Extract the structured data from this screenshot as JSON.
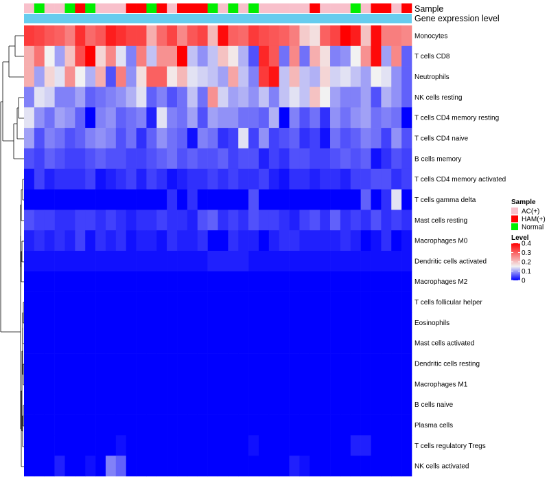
{
  "chart_data": {
    "type": "heatmap",
    "title": "",
    "annotation_labels": {
      "sample": "Sample",
      "expression": "Gene expression level"
    },
    "sample_annotation": [
      "AC(+)",
      "Normal",
      "AC(+)",
      "AC(+)",
      "Normal",
      "HAM(+)",
      "Normal",
      "AC(+)",
      "AC(+)",
      "AC(+)",
      "HAM(+)",
      "HAM(+)",
      "Normal",
      "HAM(+)",
      "AC(+)",
      "HAM(+)",
      "HAM(+)",
      "HAM(+)",
      "Normal",
      "AC(+)",
      "Normal",
      "AC(+)",
      "Normal",
      "AC(+)",
      "AC(+)",
      "AC(+)",
      "AC(+)",
      "AC(+)",
      "HAM(+)",
      "AC(+)",
      "AC(+)",
      "AC(+)",
      "Normal",
      "AC(+)",
      "HAM(+)",
      "HAM(+)",
      "AC(+)",
      "HAM(+)"
    ],
    "sample_colors": {
      "AC(+)": "#f8c0cb",
      "HAM(+)": "#ff0000",
      "Normal": "#00ee00"
    },
    "expression_color": "#66ccee",
    "rows": [
      "Monocytes",
      "T cells CD8",
      "Neutrophils",
      "NK cells resting",
      "T cells CD4 memory resting",
      "T cells CD4 naive",
      "B cells memory",
      "T cells CD4 memory activated",
      "T cells gamma delta",
      "Mast cells resting",
      "Macrophages M0",
      "Dendritic cells activated",
      "Macrophages M2",
      "T cells follicular helper",
      "Eosinophils",
      "Mast cells activated",
      "Dendritic cells resting",
      "Macrophages M1",
      "B cells naive",
      "Plasma cells",
      "T cells regulatory  Tregs",
      "NK cells activated"
    ],
    "values": [
      [
        0.34,
        0.33,
        0.31,
        0.3,
        0.27,
        0.35,
        0.29,
        0.31,
        0.37,
        0.35,
        0.33,
        0.33,
        0.22,
        0.29,
        0.33,
        0.26,
        0.31,
        0.33,
        0.21,
        0.39,
        0.3,
        0.29,
        0.34,
        0.32,
        0.31,
        0.3,
        0.27,
        0.19,
        0.17,
        0.3,
        0.33,
        0.4,
        0.37,
        0.2,
        0.39,
        0.27,
        0.27,
        0.26
      ],
      [
        0.22,
        0.28,
        0.15,
        0.1,
        0.2,
        0.32,
        0.4,
        0.18,
        0.26,
        0.14,
        0.08,
        0.27,
        0.12,
        0.25,
        0.25,
        0.4,
        0.12,
        0.09,
        0.12,
        0.2,
        0.16,
        0.11,
        0.05,
        0.36,
        0.31,
        0.07,
        0.26,
        0.07,
        0.22,
        0.17,
        0.08,
        0.09,
        0.15,
        0.25,
        0.39,
        0.1,
        0.26,
        0.06
      ],
      [
        0.22,
        0.1,
        0.18,
        0.14,
        0.25,
        0.15,
        0.11,
        0.22,
        0.05,
        0.27,
        0.09,
        0.17,
        0.3,
        0.3,
        0.16,
        0.21,
        0.14,
        0.13,
        0.12,
        0.1,
        0.23,
        0.12,
        0.08,
        0.34,
        0.38,
        0.12,
        0.21,
        0.12,
        0.11,
        0.18,
        0.13,
        0.14,
        0.12,
        0.1,
        0.15,
        0.14,
        0.09,
        0.06
      ],
      [
        0.08,
        0.14,
        0.13,
        0.08,
        0.08,
        0.1,
        0.06,
        0.07,
        0.08,
        0.09,
        0.11,
        0.14,
        0.06,
        0.08,
        0.05,
        0.07,
        0.12,
        0.07,
        0.25,
        0.13,
        0.1,
        0.11,
        0.09,
        0.12,
        0.08,
        0.12,
        0.14,
        0.12,
        0.2,
        0.15,
        0.1,
        0.08,
        0.08,
        0.1,
        0.05,
        0.11,
        0.09,
        0.06
      ],
      [
        0.14,
        0.09,
        0.07,
        0.1,
        0.09,
        0.06,
        0.0,
        0.08,
        0.09,
        0.06,
        0.07,
        0.08,
        0.02,
        0.14,
        0.08,
        0.07,
        0.1,
        0.05,
        0.1,
        0.09,
        0.09,
        0.07,
        0.07,
        0.06,
        0.11,
        0.0,
        0.08,
        0.05,
        0.07,
        0.03,
        0.09,
        0.07,
        0.09,
        0.1,
        0.07,
        0.08,
        0.07,
        0.0
      ],
      [
        0.1,
        0.05,
        0.08,
        0.07,
        0.05,
        0.06,
        0.08,
        0.09,
        0.08,
        0.05,
        0.07,
        0.03,
        0.06,
        0.09,
        0.07,
        0.06,
        0.01,
        0.08,
        0.07,
        0.03,
        0.04,
        0.14,
        0.04,
        0.09,
        0.04,
        0.05,
        0.06,
        0.03,
        0.04,
        0.01,
        0.07,
        0.05,
        0.06,
        0.08,
        0.07,
        0.04,
        0.09,
        0.05
      ],
      [
        0.05,
        0.04,
        0.06,
        0.05,
        0.04,
        0.04,
        0.05,
        0.06,
        0.05,
        0.05,
        0.04,
        0.04,
        0.05,
        0.06,
        0.07,
        0.05,
        0.06,
        0.05,
        0.05,
        0.06,
        0.04,
        0.05,
        0.05,
        0.02,
        0.04,
        0.03,
        0.05,
        0.05,
        0.04,
        0.04,
        0.05,
        0.06,
        0.05,
        0.06,
        0.01,
        0.03,
        0.05,
        0.04
      ],
      [
        0.01,
        0.04,
        0.02,
        0.03,
        0.03,
        0.03,
        0.04,
        0.01,
        0.02,
        0.03,
        0.04,
        0.02,
        0.04,
        0.03,
        0.01,
        0.02,
        0.03,
        0.03,
        0.04,
        0.03,
        0.04,
        0.03,
        0.03,
        0.04,
        0.02,
        0.01,
        0.03,
        0.03,
        0.02,
        0.03,
        0.03,
        0.02,
        0.04,
        0.04,
        0.05,
        0.05,
        0.03,
        0.04
      ],
      [
        0.0,
        0.0,
        0.0,
        0.0,
        0.0,
        0.0,
        0.0,
        0.0,
        0.0,
        0.0,
        0.0,
        0.0,
        0.0,
        0.0,
        0.03,
        0.0,
        0.03,
        0.0,
        0.0,
        0.0,
        0.0,
        0.0,
        0.05,
        0.0,
        0.0,
        0.0,
        0.0,
        0.0,
        0.0,
        0.0,
        0.0,
        0.0,
        0.0,
        0.06,
        0.0,
        0.03,
        0.14,
        0.0
      ],
      [
        0.05,
        0.04,
        0.04,
        0.03,
        0.03,
        0.04,
        0.04,
        0.03,
        0.04,
        0.03,
        0.02,
        0.03,
        0.03,
        0.04,
        0.03,
        0.03,
        0.02,
        0.05,
        0.06,
        0.03,
        0.04,
        0.03,
        0.05,
        0.04,
        0.04,
        0.03,
        0.02,
        0.04,
        0.05,
        0.03,
        0.06,
        0.03,
        0.04,
        0.03,
        0.05,
        0.03,
        0.04,
        0.03
      ],
      [
        0.02,
        0.03,
        0.02,
        0.03,
        0.02,
        0.04,
        0.01,
        0.03,
        0.02,
        0.03,
        0.01,
        0.02,
        0.02,
        0.01,
        0.03,
        0.02,
        0.02,
        0.03,
        0.0,
        0.0,
        0.03,
        0.02,
        0.02,
        0.0,
        0.02,
        0.03,
        0.03,
        0.02,
        0.02,
        0.02,
        0.02,
        0.03,
        0.02,
        0.0,
        0.01,
        0.03,
        0.0,
        0.01
      ],
      [
        0.01,
        0.01,
        0.01,
        0.01,
        0.01,
        0.01,
        0.01,
        0.01,
        0.01,
        0.01,
        0.01,
        0.01,
        0.01,
        0.01,
        0.01,
        0.01,
        0.01,
        0.01,
        0.02,
        0.02,
        0.02,
        0.02,
        0.01,
        0.01,
        0.01,
        0.01,
        0.01,
        0.01,
        0.01,
        0.01,
        0.01,
        0.01,
        0.01,
        0.01,
        0.01,
        0.01,
        0.01,
        0.01
      ],
      [
        0.0,
        0.0,
        0.0,
        0.0,
        0.0,
        0.0,
        0.0,
        0.0,
        0.0,
        0.0,
        0.0,
        0.0,
        0.0,
        0.0,
        0.0,
        0.0,
        0.0,
        0.0,
        0.0,
        0.0,
        0.0,
        0.0,
        0.0,
        0.0,
        0.0,
        0.0,
        0.0,
        0.0,
        0.0,
        0.0,
        0.0,
        0.0,
        0.0,
        0.0,
        0.0,
        0.0,
        0.0,
        0.0
      ],
      [
        0.0,
        0.0,
        0.0,
        0.0,
        0.0,
        0.0,
        0.0,
        0.0,
        0.0,
        0.0,
        0.0,
        0.0,
        0.0,
        0.0,
        0.0,
        0.0,
        0.0,
        0.0,
        0.0,
        0.0,
        0.0,
        0.0,
        0.0,
        0.0,
        0.0,
        0.0,
        0.0,
        0.0,
        0.0,
        0.0,
        0.0,
        0.0,
        0.0,
        0.0,
        0.0,
        0.0,
        0.0,
        0.0
      ],
      [
        0.0,
        0.0,
        0.0,
        0.0,
        0.0,
        0.0,
        0.0,
        0.0,
        0.0,
        0.0,
        0.0,
        0.0,
        0.0,
        0.0,
        0.0,
        0.0,
        0.0,
        0.0,
        0.0,
        0.0,
        0.0,
        0.0,
        0.0,
        0.0,
        0.0,
        0.0,
        0.0,
        0.0,
        0.0,
        0.0,
        0.0,
        0.0,
        0.0,
        0.0,
        0.0,
        0.0,
        0.0,
        0.0
      ],
      [
        0.0,
        0.0,
        0.0,
        0.0,
        0.0,
        0.0,
        0.0,
        0.0,
        0.0,
        0.0,
        0.0,
        0.0,
        0.0,
        0.0,
        0.0,
        0.0,
        0.0,
        0.0,
        0.0,
        0.0,
        0.0,
        0.0,
        0.0,
        0.0,
        0.0,
        0.0,
        0.0,
        0.0,
        0.0,
        0.0,
        0.0,
        0.0,
        0.0,
        0.0,
        0.0,
        0.0,
        0.0,
        0.0
      ],
      [
        0.0,
        0.0,
        0.0,
        0.0,
        0.0,
        0.0,
        0.0,
        0.0,
        0.0,
        0.0,
        0.0,
        0.0,
        0.0,
        0.0,
        0.0,
        0.0,
        0.0,
        0.0,
        0.0,
        0.0,
        0.0,
        0.0,
        0.0,
        0.0,
        0.0,
        0.0,
        0.0,
        0.0,
        0.0,
        0.0,
        0.0,
        0.0,
        0.0,
        0.0,
        0.0,
        0.0,
        0.0,
        0.0
      ],
      [
        0.0,
        0.0,
        0.0,
        0.0,
        0.0,
        0.0,
        0.0,
        0.0,
        0.0,
        0.0,
        0.0,
        0.0,
        0.0,
        0.0,
        0.0,
        0.0,
        0.0,
        0.0,
        0.0,
        0.0,
        0.0,
        0.0,
        0.0,
        0.0,
        0.0,
        0.0,
        0.0,
        0.0,
        0.0,
        0.0,
        0.0,
        0.0,
        0.0,
        0.0,
        0.0,
        0.0,
        0.0,
        0.0
      ],
      [
        0.0,
        0.0,
        0.0,
        0.0,
        0.0,
        0.0,
        0.0,
        0.0,
        0.0,
        0.0,
        0.0,
        0.0,
        0.0,
        0.0,
        0.0,
        0.0,
        0.0,
        0.0,
        0.0,
        0.0,
        0.0,
        0.0,
        0.0,
        0.0,
        0.0,
        0.0,
        0.0,
        0.0,
        0.0,
        0.0,
        0.0,
        0.0,
        0.0,
        0.0,
        0.0,
        0.0,
        0.0,
        0.0
      ],
      [
        0.0,
        0.0,
        0.0,
        0.0,
        0.0,
        0.0,
        0.0,
        0.0,
        0.0,
        0.0,
        0.0,
        0.0,
        0.0,
        0.0,
        0.0,
        0.0,
        0.0,
        0.0,
        0.0,
        0.0,
        0.0,
        0.0,
        0.0,
        0.0,
        0.0,
        0.0,
        0.0,
        0.0,
        0.0,
        0.0,
        0.0,
        0.0,
        0.0,
        0.0,
        0.0,
        0.0,
        0.0,
        0.0
      ],
      [
        0.0,
        0.0,
        0.0,
        0.0,
        0.0,
        0.0,
        0.0,
        0.0,
        0.0,
        0.01,
        0.0,
        0.0,
        0.0,
        0.0,
        0.0,
        0.0,
        0.0,
        0.0,
        0.0,
        0.0,
        0.0,
        0.0,
        0.01,
        0.0,
        0.0,
        0.0,
        0.0,
        0.0,
        0.0,
        0.0,
        0.0,
        0.0,
        0.02,
        0.02,
        0.0,
        0.0,
        0.0,
        0.0
      ],
      [
        0.0,
        0.0,
        0.0,
        0.02,
        0.0,
        0.0,
        0.01,
        0.0,
        0.08,
        0.06,
        0.0,
        0.0,
        0.0,
        0.0,
        0.0,
        0.0,
        0.0,
        0.0,
        0.0,
        0.0,
        0.0,
        0.0,
        0.0,
        0.0,
        0.0,
        0.0,
        0.02,
        0.01,
        0.0,
        0.0,
        0.0,
        0.0,
        0.0,
        0.0,
        0.0,
        0.0,
        0.0,
        0.0
      ]
    ],
    "color_scale": {
      "low": "#0000ff",
      "mid": "#f2f2f2",
      "high": "#ff0000",
      "mid_value": 0.15,
      "min": 0,
      "max": 0.4
    },
    "legend": {
      "sample_title": "Sample",
      "sample_items": [
        "AC(+)",
        "HAM(+)",
        "Normal"
      ],
      "level_title": "Level",
      "level_ticks": [
        "0.4",
        "0.3",
        "0.2",
        "0.1",
        "0"
      ],
      "level_tick_values": [
        0.4,
        0.3,
        0.2,
        0.1,
        0
      ]
    }
  }
}
